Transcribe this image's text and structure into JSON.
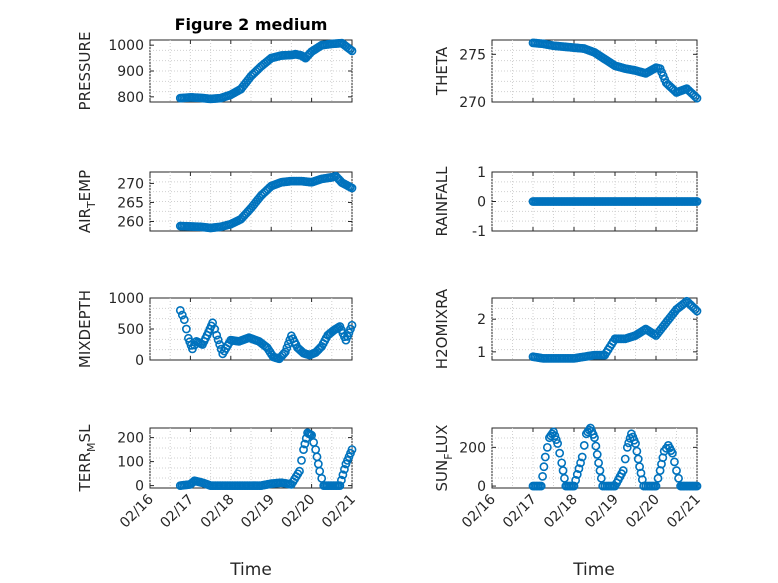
{
  "figure": {
    "title": "Figure 2 medium"
  },
  "colors": {
    "series": "#0072bd",
    "axis": "#262626",
    "grid": "#d0d0d0"
  },
  "x_axis": {
    "label": "Time",
    "range": [
      0,
      5
    ],
    "ticks": [
      0,
      1,
      2,
      3,
      4,
      5
    ],
    "tick_labels": [
      "02/16",
      "02/17",
      "02/18",
      "02/19",
      "02/20",
      "02/21"
    ]
  },
  "chart_data": [
    {
      "type": "scatter",
      "ylabel": "PRESSURE",
      "ylim": [
        780,
        1020
      ],
      "yticks": [
        800,
        900,
        1000
      ],
      "ytick_labels": [
        "800",
        "900",
        "1000"
      ],
      "grid": true,
      "x": [
        0.75,
        1.0,
        1.25,
        1.5,
        1.75,
        2.0,
        2.25,
        2.5,
        2.75,
        3.0,
        3.25,
        3.5,
        3.6,
        3.75,
        3.85,
        4.0,
        4.25,
        4.5,
        4.75,
        5.0
      ],
      "y": [
        795,
        798,
        796,
        792,
        795,
        808,
        830,
        880,
        918,
        950,
        960,
        962,
        965,
        960,
        950,
        975,
        1000,
        1005,
        1008,
        978
      ]
    },
    {
      "type": "scatter",
      "ylabel": "THETA",
      "ylim": [
        270,
        276.5
      ],
      "yticks": [
        270,
        275
      ],
      "ytick_labels": [
        "270",
        "275"
      ],
      "grid": true,
      "x": [
        1.0,
        1.25,
        1.5,
        1.75,
        2.0,
        2.25,
        2.5,
        2.75,
        3.0,
        3.25,
        3.5,
        3.75,
        4.0,
        4.1,
        4.25,
        4.5,
        4.75,
        5.0
      ],
      "y": [
        276.2,
        276.1,
        275.9,
        275.8,
        275.7,
        275.6,
        275.2,
        274.5,
        273.8,
        273.5,
        273.3,
        273.0,
        273.6,
        273.5,
        272.0,
        271.0,
        271.4,
        270.4
      ]
    },
    {
      "type": "scatter",
      "ylabel": "AIR_TEMP",
      "ylim": [
        257.5,
        273
      ],
      "yticks": [
        260,
        265,
        270
      ],
      "ytick_labels": [
        "260",
        "265",
        "270"
      ],
      "grid": true,
      "x": [
        0.75,
        1.0,
        1.25,
        1.5,
        1.75,
        2.0,
        2.25,
        2.5,
        2.75,
        3.0,
        3.25,
        3.5,
        3.75,
        4.0,
        4.25,
        4.5,
        4.6,
        4.75,
        5.0
      ],
      "y": [
        258.8,
        258.7,
        258.6,
        258.3,
        258.6,
        259.3,
        260.6,
        263.5,
        266.8,
        269.3,
        270.3,
        270.6,
        270.6,
        270.3,
        271.2,
        271.6,
        271.9,
        270.2,
        268.8
      ]
    },
    {
      "type": "scatter",
      "ylabel": "RAINFALL",
      "ylim": [
        -1,
        1
      ],
      "yticks": [
        -1,
        0,
        1
      ],
      "ytick_labels": [
        "-1",
        "0",
        "1"
      ],
      "grid": true,
      "x": [
        1.0,
        1.5,
        2.0,
        2.5,
        3.0,
        3.5,
        4.0,
        4.5,
        5.0
      ],
      "y": [
        0,
        0,
        0,
        0,
        0,
        0,
        0,
        0,
        0
      ]
    },
    {
      "type": "scatter",
      "ylabel": "MIXDEPTH",
      "ylim": [
        0,
        1000
      ],
      "yticks": [
        0,
        500,
        1000
      ],
      "ytick_labels": [
        "0",
        "500",
        "1000"
      ],
      "grid": true,
      "x": [
        0.75,
        0.85,
        0.95,
        1.05,
        1.15,
        1.3,
        1.45,
        1.55,
        1.65,
        1.8,
        2.0,
        2.2,
        2.45,
        2.7,
        2.9,
        3.05,
        3.2,
        3.35,
        3.5,
        3.65,
        3.8,
        3.95,
        4.1,
        4.25,
        4.4,
        4.55,
        4.7,
        4.85,
        5.0
      ],
      "y": [
        800,
        650,
        350,
        180,
        300,
        250,
        450,
        600,
        400,
        100,
        320,
        300,
        360,
        300,
        200,
        50,
        20,
        130,
        390,
        200,
        110,
        80,
        120,
        220,
        400,
        480,
        540,
        320,
        560
      ]
    },
    {
      "type": "scatter",
      "ylabel": "H2OMIXRA",
      "ylim": [
        0.75,
        2.65
      ],
      "yticks": [
        1,
        2
      ],
      "ytick_labels": [
        "1",
        "2"
      ],
      "grid": true,
      "x": [
        1.0,
        1.25,
        1.5,
        1.75,
        2.0,
        2.25,
        2.5,
        2.75,
        3.0,
        3.25,
        3.5,
        3.75,
        4.0,
        4.25,
        4.5,
        4.75,
        5.0
      ],
      "y": [
        0.85,
        0.8,
        0.8,
        0.8,
        0.8,
        0.85,
        0.9,
        0.9,
        1.4,
        1.4,
        1.5,
        1.7,
        1.5,
        1.9,
        2.3,
        2.55,
        2.25
      ]
    },
    {
      "type": "scatter",
      "ylabel": "TERR_MSL",
      "ylim": [
        -10,
        240
      ],
      "yticks": [
        0,
        100,
        200
      ],
      "ytick_labels": [
        "0",
        "100",
        "200"
      ],
      "grid": true,
      "x": [
        0.75,
        1.0,
        1.1,
        1.3,
        1.5,
        1.75,
        2.0,
        2.25,
        2.5,
        2.75,
        3.0,
        3.25,
        3.5,
        3.7,
        3.8,
        3.9,
        4.0,
        4.1,
        4.2,
        4.3,
        4.5,
        4.7,
        4.85,
        5.0
      ],
      "y": [
        0,
        5,
        20,
        12,
        0,
        0,
        0,
        0,
        0,
        0,
        8,
        12,
        5,
        60,
        150,
        220,
        210,
        150,
        60,
        0,
        0,
        0,
        90,
        150
      ]
    },
    {
      "type": "scatter",
      "ylabel": "SUN_FLUX",
      "ylim": [
        -10,
        300
      ],
      "yticks": [
        0,
        200
      ],
      "ytick_labels": [
        "0",
        "200"
      ],
      "grid": true,
      "x": [
        1.0,
        1.2,
        1.3,
        1.4,
        1.5,
        1.6,
        1.7,
        1.8,
        2.0,
        2.2,
        2.3,
        2.4,
        2.5,
        2.6,
        2.7,
        2.8,
        3.0,
        3.2,
        3.3,
        3.4,
        3.5,
        3.6,
        3.7,
        3.8,
        4.0,
        4.1,
        4.2,
        4.3,
        4.4,
        4.5,
        4.6,
        4.7,
        4.85,
        5.0
      ],
      "y": [
        0,
        0,
        150,
        250,
        280,
        220,
        120,
        0,
        0,
        150,
        270,
        300,
        250,
        120,
        0,
        0,
        0,
        80,
        200,
        270,
        220,
        100,
        0,
        0,
        0,
        80,
        180,
        210,
        170,
        80,
        0,
        0,
        0,
        0
      ]
    }
  ]
}
